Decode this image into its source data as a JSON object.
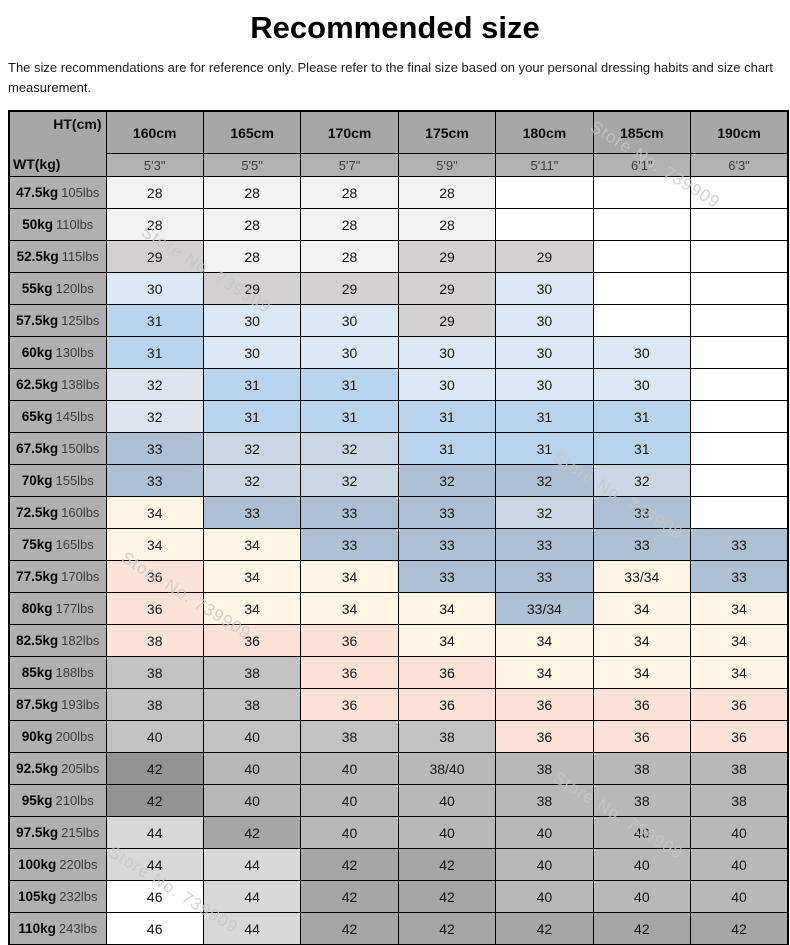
{
  "page": {
    "title": "Recommended size",
    "disclaimer": "The size recommendations are for reference only. Please refer to the final size based on your personal dressing habits and size chart measurement."
  },
  "watermark": {
    "text": "Store No. 739909"
  },
  "colors": {
    "w": "#ffffff",
    "g1": "#f2f2f2",
    "g2": "#d2d0d0",
    "g3": "#c3c2c2",
    "g4": "#b9b8b8",
    "g5": "#a7a6a6",
    "g6": "#949393",
    "g7": "#d9d8d8",
    "b1": "#dce8f5",
    "b2": "#bad3ec",
    "b3": "#aec0d3",
    "b4": "#ccd6e2",
    "b5": "#dfe5ec",
    "cream": "#fdf6e4",
    "pink": "#fbe3d7",
    "header": "#a8a7a7",
    "subheader": "#b3b2b2",
    "rowlabel": "#b1b0b0",
    "border": "#000000"
  },
  "table": {
    "corner": {
      "top": "HT(cm)",
      "bottom": "WT(kg)"
    },
    "columns": [
      [
        "160cm",
        "5'3\""
      ],
      [
        "165cm",
        "5'5\""
      ],
      [
        "170cm",
        "5'7\""
      ],
      [
        "175cm",
        "5'9\""
      ],
      [
        "180cm",
        "5'11\""
      ],
      [
        "185cm",
        "6'1\""
      ],
      [
        "190cm",
        "6'3\""
      ]
    ],
    "rows": [
      {
        "kg": "47.5kg",
        "lbs": "105lbs",
        "cells": [
          [
            "28",
            "g1"
          ],
          [
            "28",
            "g1"
          ],
          [
            "28",
            "g1"
          ],
          [
            "28",
            "g1"
          ],
          [
            "",
            "w"
          ],
          [
            "",
            "w"
          ],
          [
            "",
            "w"
          ]
        ]
      },
      {
        "kg": "50kg",
        "lbs": "110lbs",
        "cells": [
          [
            "28",
            "g1"
          ],
          [
            "28",
            "g1"
          ],
          [
            "28",
            "g1"
          ],
          [
            "28",
            "g1"
          ],
          [
            "",
            "w"
          ],
          [
            "",
            "w"
          ],
          [
            "",
            "w"
          ]
        ]
      },
      {
        "kg": "52.5kg",
        "lbs": "115lbs",
        "cells": [
          [
            "29",
            "g2"
          ],
          [
            "28",
            "g1"
          ],
          [
            "28",
            "g1"
          ],
          [
            "29",
            "g2"
          ],
          [
            "29",
            "g2"
          ],
          [
            "",
            "w"
          ],
          [
            "",
            "w"
          ]
        ]
      },
      {
        "kg": "55kg",
        "lbs": "120lbs",
        "cells": [
          [
            "30",
            "b1"
          ],
          [
            "29",
            "g2"
          ],
          [
            "29",
            "g2"
          ],
          [
            "29",
            "g2"
          ],
          [
            "30",
            "b1"
          ],
          [
            "",
            "w"
          ],
          [
            "",
            "w"
          ]
        ]
      },
      {
        "kg": "57.5kg",
        "lbs": "125lbs",
        "cells": [
          [
            "31",
            "b2"
          ],
          [
            "30",
            "b1"
          ],
          [
            "30",
            "b1"
          ],
          [
            "29",
            "g2"
          ],
          [
            "30",
            "b1"
          ],
          [
            "",
            "w"
          ],
          [
            "",
            "w"
          ]
        ]
      },
      {
        "kg": "60kg",
        "lbs": "130lbs",
        "cells": [
          [
            "31",
            "b2"
          ],
          [
            "30",
            "b1"
          ],
          [
            "30",
            "b1"
          ],
          [
            "30",
            "b1"
          ],
          [
            "30",
            "b1"
          ],
          [
            "30",
            "b1"
          ],
          [
            "",
            "w"
          ]
        ]
      },
      {
        "kg": "62.5kg",
        "lbs": "138lbs",
        "cells": [
          [
            "32",
            "b5"
          ],
          [
            "31",
            "b2"
          ],
          [
            "31",
            "b2"
          ],
          [
            "30",
            "b1"
          ],
          [
            "30",
            "b1"
          ],
          [
            "30",
            "b1"
          ],
          [
            "",
            "w"
          ]
        ]
      },
      {
        "kg": "65kg",
        "lbs": "145lbs",
        "cells": [
          [
            "32",
            "b5"
          ],
          [
            "31",
            "b2"
          ],
          [
            "31",
            "b2"
          ],
          [
            "31",
            "b2"
          ],
          [
            "31",
            "b2"
          ],
          [
            "31",
            "b2"
          ],
          [
            "",
            "w"
          ]
        ]
      },
      {
        "kg": "67.5kg",
        "lbs": "150lbs",
        "cells": [
          [
            "33",
            "b3"
          ],
          [
            "32",
            "b4"
          ],
          [
            "32",
            "b4"
          ],
          [
            "31",
            "b2"
          ],
          [
            "31",
            "b2"
          ],
          [
            "31",
            "b2"
          ],
          [
            "",
            "w"
          ]
        ]
      },
      {
        "kg": "70kg",
        "lbs": "155lbs",
        "cells": [
          [
            "33",
            "b3"
          ],
          [
            "32",
            "b4"
          ],
          [
            "32",
            "b4"
          ],
          [
            "32",
            "b3"
          ],
          [
            "32",
            "b3"
          ],
          [
            "32",
            "b4"
          ],
          [
            "",
            "w"
          ]
        ]
      },
      {
        "kg": "72.5kg",
        "lbs": "160lbs",
        "cells": [
          [
            "34",
            "cream"
          ],
          [
            "33",
            "b3"
          ],
          [
            "33",
            "b3"
          ],
          [
            "33",
            "b3"
          ],
          [
            "32",
            "b4"
          ],
          [
            "33",
            "b3"
          ],
          [
            "",
            "w"
          ]
        ]
      },
      {
        "kg": "75kg",
        "lbs": "165lbs",
        "cells": [
          [
            "34",
            "cream"
          ],
          [
            "34",
            "cream"
          ],
          [
            "33",
            "b3"
          ],
          [
            "33",
            "b3"
          ],
          [
            "33",
            "b3"
          ],
          [
            "33",
            "b3"
          ],
          [
            "33",
            "b3"
          ]
        ]
      },
      {
        "kg": "77.5kg",
        "lbs": "170lbs",
        "cells": [
          [
            "36",
            "pink"
          ],
          [
            "34",
            "cream"
          ],
          [
            "34",
            "cream"
          ],
          [
            "33",
            "b3"
          ],
          [
            "33",
            "b3"
          ],
          [
            "33/34",
            "cream"
          ],
          [
            "33",
            "b3"
          ]
        ]
      },
      {
        "kg": "80kg",
        "lbs": "177lbs",
        "cells": [
          [
            "36",
            "pink"
          ],
          [
            "34",
            "cream"
          ],
          [
            "34",
            "cream"
          ],
          [
            "34",
            "cream"
          ],
          [
            "33/34",
            "b3"
          ],
          [
            "34",
            "cream"
          ],
          [
            "34",
            "cream"
          ]
        ]
      },
      {
        "kg": "82.5kg",
        "lbs": "182lbs",
        "cells": [
          [
            "38",
            "pink"
          ],
          [
            "36",
            "pink"
          ],
          [
            "36",
            "pink"
          ],
          [
            "34",
            "cream"
          ],
          [
            "34",
            "cream"
          ],
          [
            "34",
            "cream"
          ],
          [
            "34",
            "cream"
          ]
        ]
      },
      {
        "kg": "85kg",
        "lbs": "188lbs",
        "cells": [
          [
            "38",
            "g3"
          ],
          [
            "38",
            "g3"
          ],
          [
            "36",
            "pink"
          ],
          [
            "36",
            "pink"
          ],
          [
            "34",
            "cream"
          ],
          [
            "34",
            "cream"
          ],
          [
            "34",
            "cream"
          ]
        ]
      },
      {
        "kg": "87.5kg",
        "lbs": "193lbs",
        "cells": [
          [
            "38",
            "g3"
          ],
          [
            "38",
            "g3"
          ],
          [
            "36",
            "pink"
          ],
          [
            "36",
            "pink"
          ],
          [
            "36",
            "pink"
          ],
          [
            "36",
            "pink"
          ],
          [
            "36",
            "pink"
          ]
        ]
      },
      {
        "kg": "90kg",
        "lbs": "200lbs",
        "cells": [
          [
            "40",
            "g3"
          ],
          [
            "40",
            "g3"
          ],
          [
            "38",
            "g3"
          ],
          [
            "38",
            "g3"
          ],
          [
            "36",
            "pink"
          ],
          [
            "36",
            "pink"
          ],
          [
            "36",
            "pink"
          ]
        ]
      },
      {
        "kg": "92.5kg",
        "lbs": "205lbs",
        "cells": [
          [
            "42",
            "g6"
          ],
          [
            "40",
            "g4"
          ],
          [
            "40",
            "g4"
          ],
          [
            "38/40",
            "g4"
          ],
          [
            "38",
            "g4"
          ],
          [
            "38",
            "g4"
          ],
          [
            "38",
            "g4"
          ]
        ]
      },
      {
        "kg": "95kg",
        "lbs": "210lbs",
        "cells": [
          [
            "42",
            "g6"
          ],
          [
            "40",
            "g4"
          ],
          [
            "40",
            "g4"
          ],
          [
            "40",
            "g4"
          ],
          [
            "38",
            "g4"
          ],
          [
            "38",
            "g4"
          ],
          [
            "38",
            "g4"
          ]
        ]
      },
      {
        "kg": "97.5kg",
        "lbs": "215lbs",
        "cells": [
          [
            "44",
            "g7"
          ],
          [
            "42",
            "g5"
          ],
          [
            "40",
            "g4"
          ],
          [
            "40",
            "g4"
          ],
          [
            "40",
            "g4"
          ],
          [
            "40",
            "g4"
          ],
          [
            "40",
            "g4"
          ]
        ]
      },
      {
        "kg": "100kg",
        "lbs": "220lbs",
        "cells": [
          [
            "44",
            "g7"
          ],
          [
            "44",
            "g7"
          ],
          [
            "42",
            "g5"
          ],
          [
            "42",
            "g5"
          ],
          [
            "40",
            "g4"
          ],
          [
            "40",
            "g4"
          ],
          [
            "40",
            "g4"
          ]
        ]
      },
      {
        "kg": "105kg",
        "lbs": "232lbs",
        "cells": [
          [
            "46",
            "w"
          ],
          [
            "44",
            "g7"
          ],
          [
            "42",
            "g5"
          ],
          [
            "42",
            "g5"
          ],
          [
            "40",
            "g4"
          ],
          [
            "40",
            "g4"
          ],
          [
            "40",
            "g4"
          ]
        ]
      },
      {
        "kg": "110kg",
        "lbs": "243lbs",
        "cells": [
          [
            "46",
            "w"
          ],
          [
            "44",
            "g7"
          ],
          [
            "42",
            "g5"
          ],
          [
            "42",
            "g5"
          ],
          [
            "42",
            "g5"
          ],
          [
            "42",
            "g5"
          ],
          [
            "42",
            "g5"
          ]
        ]
      }
    ]
  }
}
